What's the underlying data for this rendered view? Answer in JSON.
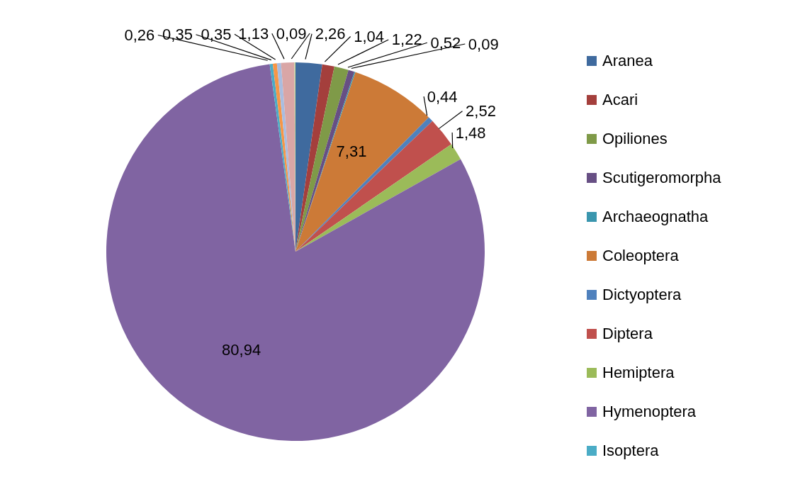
{
  "chart_data": {
    "type": "pie",
    "categories": [
      "Aranea",
      "Acari",
      "Opiliones",
      "Scutigeromorpha",
      "Archaeognatha",
      "Coleoptera",
      "Dictyoptera",
      "Diptera",
      "Hemiptera",
      "Hymenoptera",
      "Isoptera",
      null,
      null,
      null,
      null
    ],
    "values": [
      2.26,
      1.04,
      1.22,
      0.52,
      0.09,
      7.31,
      0.44,
      2.52,
      1.48,
      80.94,
      0.26,
      0.35,
      0.35,
      1.13,
      0.09
    ],
    "value_labels": [
      "2,26",
      "1,04",
      "1,22",
      "0,52",
      "0,09",
      "7,31",
      "0,44",
      "2,52",
      "1,48",
      "80,94",
      "0,26",
      "0,35",
      "0,35",
      "1,13",
      "0,09"
    ],
    "colors": [
      "#3f6a9e",
      "#a43f3c",
      "#7f9a48",
      "#674f84",
      "#3a96ae",
      "#cc7a37",
      "#4f81bd",
      "#c0504d",
      "#9bbb59",
      "#8064a2",
      "#4bacc6",
      "#f79646",
      "#a9bde0",
      "#d9a6a6",
      "#c3d69b"
    ],
    "legend": "right"
  }
}
